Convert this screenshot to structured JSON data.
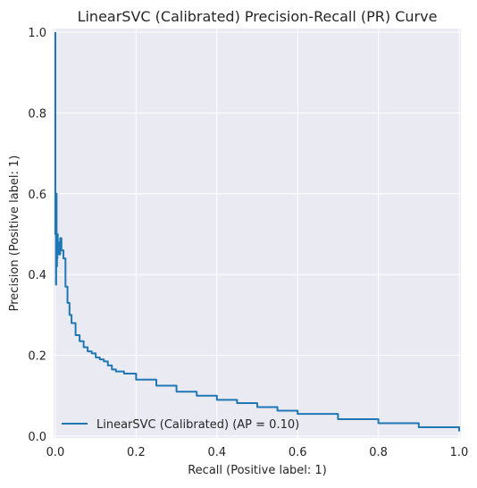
{
  "chart_data": {
    "type": "line",
    "title": "LinearSVC (Calibrated) Precision-Recall (PR) Curve",
    "xlabel": "Recall (Positive label: 1)",
    "ylabel": "Precision (Positive label: 1)",
    "xlim": [
      0.0,
      1.0
    ],
    "ylim": [
      0.0,
      1.0
    ],
    "xticks": [
      "0.0",
      "0.2",
      "0.4",
      "0.6",
      "0.8",
      "1.0"
    ],
    "yticks": [
      "0.0",
      "0.2",
      "0.4",
      "0.6",
      "0.8",
      "1.0"
    ],
    "grid": true,
    "legend_position": "lower-left",
    "series": [
      {
        "name": "LinearSVC (Calibrated) (AP = 0.10)",
        "color": "#1f77b4",
        "x": [
          0.0,
          0.0,
          0.0015,
          0.0015,
          0.002,
          0.002,
          0.003,
          0.003,
          0.004,
          0.005,
          0.006,
          0.007,
          0.008,
          0.01,
          0.012,
          0.015,
          0.02,
          0.025,
          0.03,
          0.035,
          0.04,
          0.05,
          0.06,
          0.07,
          0.08,
          0.09,
          0.1,
          0.11,
          0.12,
          0.13,
          0.14,
          0.15,
          0.17,
          0.2,
          0.25,
          0.3,
          0.35,
          0.4,
          0.45,
          0.5,
          0.55,
          0.6,
          0.7,
          0.8,
          0.9,
          1.0
        ],
        "y": [
          1.0,
          0.5,
          0.5,
          0.375,
          0.375,
          0.6,
          0.6,
          0.42,
          0.44,
          0.5,
          0.45,
          0.48,
          0.47,
          0.45,
          0.49,
          0.46,
          0.44,
          0.37,
          0.33,
          0.3,
          0.28,
          0.25,
          0.235,
          0.22,
          0.21,
          0.205,
          0.195,
          0.19,
          0.185,
          0.175,
          0.165,
          0.16,
          0.155,
          0.14,
          0.125,
          0.11,
          0.1,
          0.09,
          0.082,
          0.072,
          0.063,
          0.055,
          0.042,
          0.032,
          0.022,
          0.012
        ]
      }
    ]
  }
}
